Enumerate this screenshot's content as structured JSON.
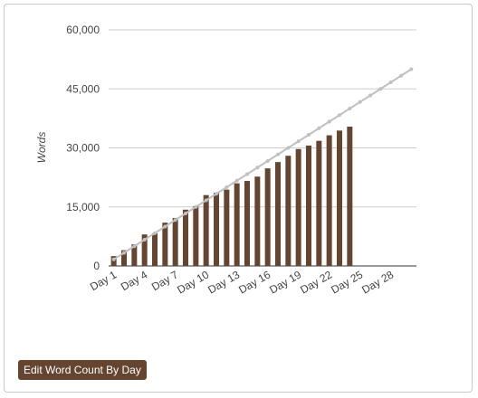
{
  "chart_data": {
    "type": "bar-line",
    "y_label": "Words",
    "categories": [
      "Day 1",
      null,
      null,
      "Day 4",
      null,
      null,
      "Day 7",
      null,
      null,
      "Day 10",
      null,
      null,
      "Day 13",
      null,
      null,
      "Day 16",
      null,
      null,
      "Day 19",
      null,
      null,
      "Day 22",
      null,
      null,
      "Day 25",
      null,
      null,
      "Day 28",
      null,
      null
    ],
    "series": [
      {
        "type": "bar",
        "color": "#654530",
        "values": [
          2500,
          4000,
          5500,
          8000,
          8300,
          11000,
          12200,
          14300,
          15200,
          18000,
          18600,
          19400,
          21000,
          21600,
          22700,
          24800,
          26400,
          28000,
          29700,
          30600,
          31800,
          33200,
          34400,
          35400,
          null,
          null,
          null,
          null,
          null,
          null
        ]
      },
      {
        "type": "line",
        "color": "#c0c0c0",
        "values": [
          1667,
          3333,
          5000,
          6667,
          8333,
          10000,
          11667,
          13333,
          15000,
          16667,
          18333,
          20000,
          21667,
          23333,
          25000,
          26667,
          28333,
          30000,
          31667,
          33333,
          35000,
          36667,
          38333,
          40000,
          41667,
          43333,
          45000,
          46667,
          48333,
          50000
        ]
      }
    ],
    "ylim": [
      0,
      60000
    ],
    "yticks": [
      {
        "value": 0,
        "label": "0"
      },
      {
        "value": 15000,
        "label": "15,000"
      },
      {
        "value": 30000,
        "label": "30,000"
      },
      {
        "value": 45000,
        "label": "45,000"
      },
      {
        "value": 60000,
        "label": "60,000"
      }
    ],
    "grid": true
  },
  "button": {
    "label": "Edit Word Count By Day"
  }
}
